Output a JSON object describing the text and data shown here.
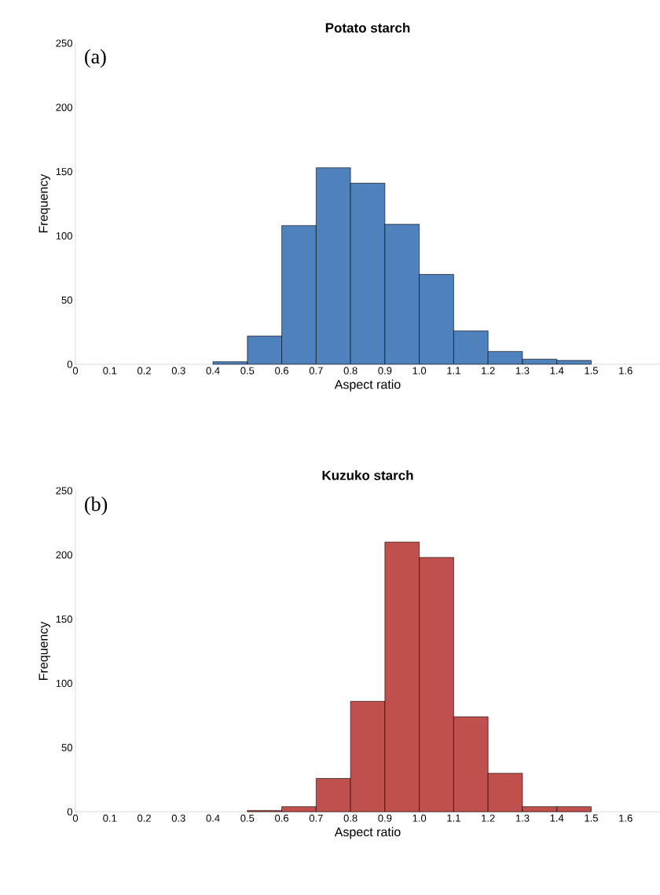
{
  "chart_data": [
    {
      "type": "histogram",
      "title": "Potato starch",
      "xlabel": "Aspect ratio",
      "ylabel": "Frequency",
      "annotations": [
        "(a)"
      ],
      "bins": [
        0.4,
        0.5,
        0.6,
        0.7,
        0.8,
        0.9,
        1.0,
        1.1,
        1.2,
        1.3,
        1.4,
        1.5
      ],
      "values": [
        2,
        22,
        108,
        153,
        141,
        109,
        70,
        26,
        10,
        4,
        3
      ],
      "color": "#4f81bd",
      "xlim": [
        0,
        1.7
      ],
      "ylim": [
        0,
        250
      ],
      "xticks": [
        0,
        0.1,
        0.2,
        0.3,
        0.4,
        0.5,
        0.6,
        0.7,
        0.8,
        0.9,
        {
          "value": 1,
          "label": "1.0"
        },
        1.1,
        1.2,
        1.3,
        1.4,
        1.5,
        1.6
      ],
      "yticks": [
        0,
        50,
        100,
        150,
        200,
        250
      ]
    },
    {
      "type": "histogram",
      "title": "Kuzuko starch",
      "xlabel": "Aspect ratio",
      "ylabel": "Frequency",
      "annotations": [
        "(b)"
      ],
      "bins": [
        0.5,
        0.6,
        0.7,
        0.8,
        0.9,
        1.0,
        1.1,
        1.2,
        1.3,
        1.4,
        1.5
      ],
      "values": [
        1,
        4,
        26,
        86,
        210,
        198,
        74,
        30,
        4,
        4
      ],
      "color": "#c0504d",
      "xlim": [
        0,
        1.7
      ],
      "ylim": [
        0,
        250
      ],
      "xticks": [
        0,
        0.1,
        0.2,
        0.3,
        0.4,
        0.5,
        0.6,
        0.7,
        0.8,
        0.9,
        {
          "value": 1,
          "label": "1.0"
        },
        1.1,
        1.2,
        1.3,
        1.4,
        1.5,
        1.6
      ],
      "yticks": [
        0,
        50,
        100,
        150,
        200,
        250
      ]
    }
  ]
}
